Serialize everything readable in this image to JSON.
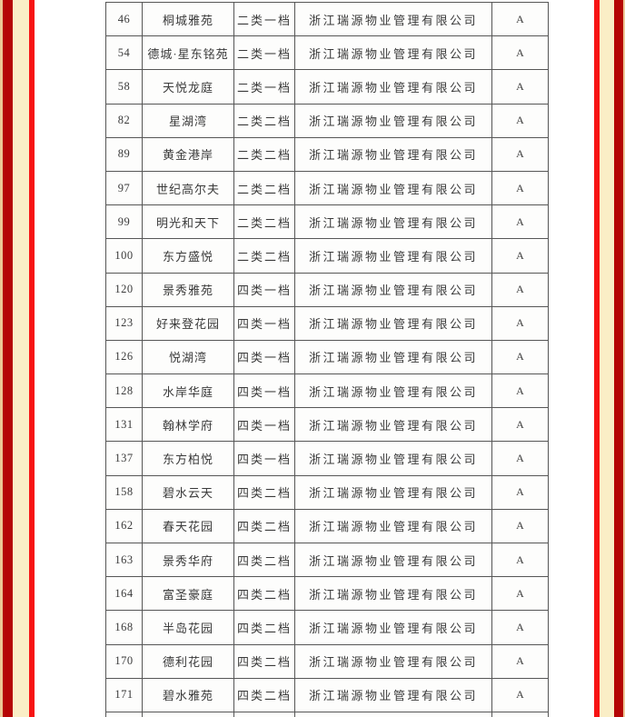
{
  "colors": {
    "frame_tan": "#ecc795",
    "frame_dark_red": "#b50505",
    "frame_cream": "#faeec6",
    "frame_bright_red": "#f71414",
    "table_border": "#565656",
    "text": "#3a3a3a"
  },
  "table": {
    "rows": [
      {
        "no": "46",
        "name": "桐城雅苑",
        "category": "二类一档",
        "company": "浙江瑞源物业管理有限公司",
        "grade": "A"
      },
      {
        "no": "54",
        "name": "德城·星东铭苑",
        "category": "二类一档",
        "company": "浙江瑞源物业管理有限公司",
        "grade": "A"
      },
      {
        "no": "58",
        "name": "天悦龙庭",
        "category": "二类一档",
        "company": "浙江瑞源物业管理有限公司",
        "grade": "A"
      },
      {
        "no": "82",
        "name": "星湖湾",
        "category": "二类二档",
        "company": "浙江瑞源物业管理有限公司",
        "grade": "A"
      },
      {
        "no": "89",
        "name": "黄金港岸",
        "category": "二类二档",
        "company": "浙江瑞源物业管理有限公司",
        "grade": "A"
      },
      {
        "no": "97",
        "name": "世纪高尔夫",
        "category": "二类二档",
        "company": "浙江瑞源物业管理有限公司",
        "grade": "A"
      },
      {
        "no": "99",
        "name": "明光和天下",
        "category": "二类二档",
        "company": "浙江瑞源物业管理有限公司",
        "grade": "A"
      },
      {
        "no": "100",
        "name": "东方盛悦",
        "category": "二类二档",
        "company": "浙江瑞源物业管理有限公司",
        "grade": "A"
      },
      {
        "no": "120",
        "name": "景秀雅苑",
        "category": "四类一档",
        "company": "浙江瑞源物业管理有限公司",
        "grade": "A"
      },
      {
        "no": "123",
        "name": "好来登花园",
        "category": "四类一档",
        "company": "浙江瑞源物业管理有限公司",
        "grade": "A"
      },
      {
        "no": "126",
        "name": "悦湖湾",
        "category": "四类一档",
        "company": "浙江瑞源物业管理有限公司",
        "grade": "A"
      },
      {
        "no": "128",
        "name": "水岸华庭",
        "category": "四类一档",
        "company": "浙江瑞源物业管理有限公司",
        "grade": "A"
      },
      {
        "no": "131",
        "name": "翰林学府",
        "category": "四类一档",
        "company": "浙江瑞源物业管理有限公司",
        "grade": "A"
      },
      {
        "no": "137",
        "name": "东方柏悦",
        "category": "四类一档",
        "company": "浙江瑞源物业管理有限公司",
        "grade": "A"
      },
      {
        "no": "158",
        "name": "碧水云天",
        "category": "四类二档",
        "company": "浙江瑞源物业管理有限公司",
        "grade": "A"
      },
      {
        "no": "162",
        "name": "春天花园",
        "category": "四类二档",
        "company": "浙江瑞源物业管理有限公司",
        "grade": "A"
      },
      {
        "no": "163",
        "name": "景秀华府",
        "category": "四类二档",
        "company": "浙江瑞源物业管理有限公司",
        "grade": "A"
      },
      {
        "no": "164",
        "name": "富圣豪庭",
        "category": "四类二档",
        "company": "浙江瑞源物业管理有限公司",
        "grade": "A"
      },
      {
        "no": "168",
        "name": "半岛花园",
        "category": "四类二档",
        "company": "浙江瑞源物业管理有限公司",
        "grade": "A"
      },
      {
        "no": "170",
        "name": "德利花园",
        "category": "四类二档",
        "company": "浙江瑞源物业管理有限公司",
        "grade": "A"
      },
      {
        "no": "171",
        "name": "碧水雅苑",
        "category": "四类二档",
        "company": "浙江瑞源物业管理有限公司",
        "grade": "A"
      }
    ]
  }
}
